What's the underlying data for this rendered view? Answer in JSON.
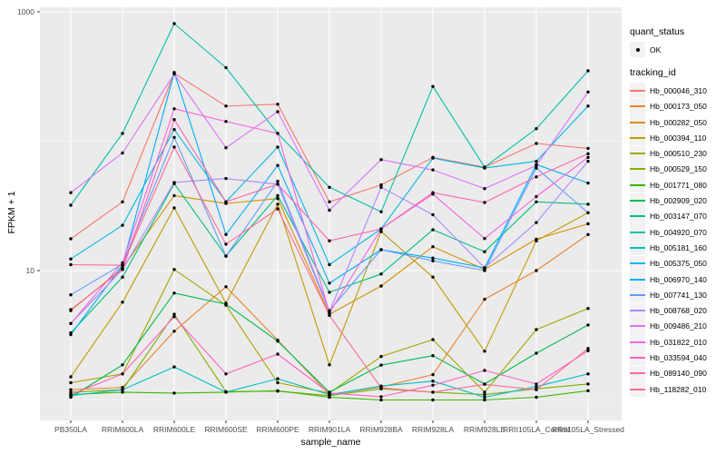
{
  "chart_data": {
    "type": "line",
    "title": "",
    "xlabel": "sample_name",
    "ylabel": "FPKM + 1",
    "y_scale": "log10",
    "ylim": [
      0.7,
      1100
    ],
    "grid": true,
    "legend_position": "right",
    "panel_bg": "#EBEBEB",
    "grid_color": "#FFFFFF",
    "legend_key_bg": "#F2F2F2",
    "axis_text_color": "#4D4D4D",
    "point_color": "#000000",
    "y_ticks": [
      {
        "label": "1000",
        "value": 1000
      },
      {
        "label": "10",
        "value": 10
      }
    ],
    "y_minor_gridlines": [
      100,
      1
    ],
    "categories": [
      "PB350LA",
      "RRIM600LA",
      "RRIM600LE",
      "RRIM600SE",
      "RRIM600PE",
      "RRIM901LA",
      "RRIM928BA",
      "RRIM928LA",
      "RRIM928LE",
      "RRII105LA_Control",
      "RRII105LA_Stressed"
    ],
    "legend": {
      "quant_status_title": "quant_status",
      "quant_status_items": [
        {
          "label": "OK",
          "marker": "point"
        }
      ],
      "tracking_id_title": "tracking_id"
    },
    "series": [
      {
        "name": "Hb_000046_310",
        "color": "#F8766D",
        "values": [
          17.6,
          34,
          335,
          187,
          193,
          34,
          46,
          75,
          63,
          96,
          88
        ]
      },
      {
        "name": "Hb_000173_050",
        "color": "#EA8331",
        "values": [
          1.2,
          1.25,
          3.4,
          7.5,
          2.9,
          1.1,
          1.26,
          1.57,
          6.0,
          10,
          19
        ]
      },
      {
        "name": "Hb_000282_050",
        "color": "#D89000",
        "values": [
          4.9,
          10.5,
          38,
          33,
          36,
          4.6,
          7.6,
          15.3,
          10.2,
          17.5,
          23
        ]
      },
      {
        "name": "Hb_000394_110",
        "color": "#C09B00",
        "values": [
          1.51,
          5.7,
          30.5,
          5.6,
          32.6,
          1.87,
          20,
          8.9,
          2.38,
          17,
          28
        ]
      },
      {
        "name": "Hb_000510_230",
        "color": "#A3A500",
        "values": [
          1.36,
          1.59,
          10.2,
          5.4,
          1.36,
          1.13,
          2.17,
          2.93,
          1.15,
          3.5,
          5.1
        ]
      },
      {
        "name": "Hb_000529_150",
        "color": "#7CAE00",
        "values": [
          1.15,
          1.2,
          4.6,
          1.16,
          1.17,
          1.08,
          1.22,
          1.15,
          1.1,
          1.22,
          1.33
        ]
      },
      {
        "name": "Hb_001771_080",
        "color": "#39B600",
        "values": [
          1.1,
          1.15,
          1.13,
          1.15,
          1.18,
          1.05,
          1.0,
          1.0,
          1.0,
          1.05,
          1.18
        ]
      },
      {
        "name": "Hb_002909_020",
        "color": "#00BB4E",
        "values": [
          1.05,
          1.87,
          6.7,
          5.5,
          2.85,
          1.15,
          1.86,
          2.2,
          1.33,
          2.3,
          3.8
        ]
      },
      {
        "name": "Hb_003147_070",
        "color": "#00BF7D",
        "values": [
          3.3,
          8.9,
          47,
          13,
          38,
          6.8,
          9.4,
          20.7,
          14,
          34,
          32.6
        ]
      },
      {
        "name": "Hb_004920_070",
        "color": "#00C1A3",
        "values": [
          32,
          115,
          810,
          370,
          115,
          44,
          28.5,
          265,
          63,
          125,
          350
        ]
      },
      {
        "name": "Hb_005181_160",
        "color": "#00BFC4",
        "values": [
          1.08,
          1.2,
          1.8,
          1.15,
          1.46,
          1.1,
          1.28,
          1.4,
          1.05,
          1.27,
          1.59
        ]
      },
      {
        "name": "Hb_005375_050",
        "color": "#00B8E7",
        "values": [
          12.3,
          22.4,
          123,
          34,
          90,
          11.1,
          21,
          74,
          62,
          70,
          187
        ]
      },
      {
        "name": "Hb_006970_140",
        "color": "#00ACFC",
        "values": [
          3.2,
          11,
          340,
          19,
          65,
          8.0,
          14.5,
          12.5,
          10.5,
          66,
          47.5
        ]
      },
      {
        "name": "Hb_007741_130",
        "color": "#619CFF",
        "values": [
          6.5,
          11.2,
          107,
          12.9,
          49,
          4.9,
          14.5,
          11.9,
          10,
          62,
          28
        ]
      },
      {
        "name": "Hb_008768_020",
        "color": "#AE87FF",
        "values": [
          3.9,
          10.2,
          48,
          51.5,
          46.5,
          4.8,
          44,
          27,
          10.5,
          23.5,
          70
        ]
      },
      {
        "name": "Hb_009486_210",
        "color": "#DB72FB",
        "values": [
          40,
          81,
          330,
          89,
          169,
          29.3,
          72,
          60,
          43,
          65,
          240
        ]
      },
      {
        "name": "Hb_031822_010",
        "color": "#F564E3",
        "values": [
          3.9,
          11.5,
          178,
          142,
          115,
          4.7,
          21,
          39,
          17.7,
          37.3,
          75
        ]
      },
      {
        "name": "Hb_033594_040",
        "color": "#FF61C3",
        "values": [
          1.1,
          1.59,
          4.4,
          1.59,
          2.26,
          1.13,
          1.06,
          1.3,
          1.69,
          1.33,
          2.4
        ]
      },
      {
        "name": "Hb_089140_090",
        "color": "#FF64B0",
        "values": [
          5.0,
          10.2,
          147,
          34,
          46.5,
          17,
          21,
          40,
          33.6,
          53,
          80
        ]
      },
      {
        "name": "Hb_118282_010",
        "color": "#FF6C91",
        "values": [
          11.1,
          11,
          90,
          16,
          30,
          4.5,
          1.24,
          1.15,
          1.32,
          1.2,
          2.5
        ]
      }
    ]
  }
}
